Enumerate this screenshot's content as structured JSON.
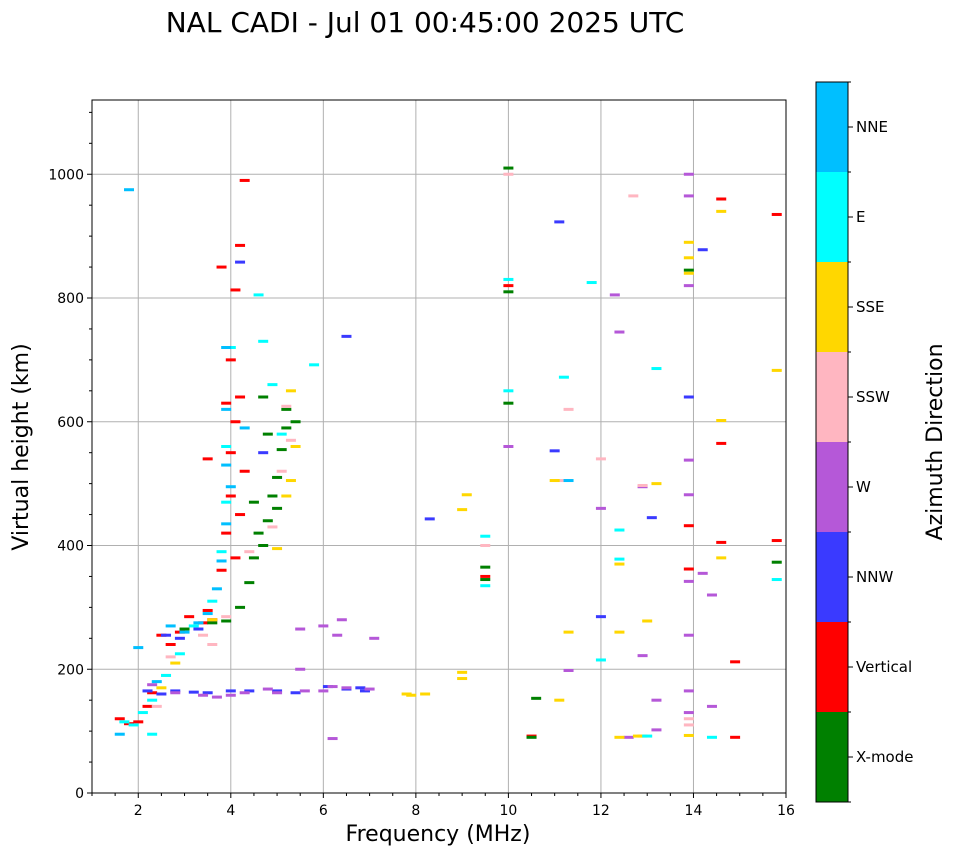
{
  "chart_data": {
    "type": "scatter",
    "title": "NAL CADI - Jul 01 00:45:00 2025 UTC",
    "xlabel": "Frequency (MHz)",
    "ylabel": "Virtual height (km)",
    "xlim": [
      1,
      16
    ],
    "ylim": [
      0,
      1120
    ],
    "xticks": [
      2,
      4,
      6,
      8,
      10,
      12,
      14,
      16
    ],
    "yticks": [
      0,
      200,
      400,
      600,
      800,
      1000
    ],
    "grid": true,
    "colorbar": {
      "title": "Azimuth Direction",
      "categories": [
        {
          "name": "X-mode",
          "color": "#008000"
        },
        {
          "name": "Vertical",
          "color": "#ff0000"
        },
        {
          "name": "NNW",
          "color": "#3a3aff"
        },
        {
          "name": "W",
          "color": "#b558d8"
        },
        {
          "name": "SSW",
          "color": "#ffb6c1"
        },
        {
          "name": "SSE",
          "color": "#ffd700"
        },
        {
          "name": "E",
          "color": "#00ffff"
        },
        {
          "name": "NNE",
          "color": "#00bfff"
        }
      ]
    },
    "series": [
      {
        "name": "Vertical",
        "points": [
          [
            1.6,
            120
          ],
          [
            1.8,
            112
          ],
          [
            2.0,
            115
          ],
          [
            2.2,
            140
          ],
          [
            2.3,
            162
          ],
          [
            2.5,
            255
          ],
          [
            2.7,
            240
          ],
          [
            2.9,
            260
          ],
          [
            3.1,
            285
          ],
          [
            3.4,
            275
          ],
          [
            3.5,
            295
          ],
          [
            3.6,
            280
          ],
          [
            3.8,
            360
          ],
          [
            3.9,
            420
          ],
          [
            4.0,
            480
          ],
          [
            4.0,
            550
          ],
          [
            3.9,
            630
          ],
          [
            4.0,
            700
          ],
          [
            4.1,
            813
          ],
          [
            4.2,
            885
          ],
          [
            4.3,
            990
          ],
          [
            3.8,
            850
          ],
          [
            4.2,
            640
          ],
          [
            4.1,
            600
          ],
          [
            3.5,
            540
          ],
          [
            4.3,
            520
          ],
          [
            4.2,
            450
          ],
          [
            4.1,
            380
          ],
          [
            10.0,
            820
          ],
          [
            9.5,
            350
          ],
          [
            13.9,
            432
          ],
          [
            13.9,
            362
          ],
          [
            14.6,
            960
          ],
          [
            14.6,
            565
          ],
          [
            14.6,
            405
          ],
          [
            14.9,
            212
          ],
          [
            14.9,
            90
          ],
          [
            15.8,
            935
          ],
          [
            15.8,
            408
          ],
          [
            10.5,
            92
          ]
        ]
      },
      {
        "name": "X-mode",
        "points": [
          [
            3.0,
            265
          ],
          [
            3.6,
            275
          ],
          [
            3.9,
            278
          ],
          [
            4.2,
            300
          ],
          [
            4.4,
            340
          ],
          [
            4.5,
            380
          ],
          [
            4.7,
            400
          ],
          [
            4.8,
            440
          ],
          [
            4.9,
            480
          ],
          [
            5.0,
            510
          ],
          [
            5.1,
            555
          ],
          [
            5.2,
            590
          ],
          [
            4.8,
            580
          ],
          [
            5.0,
            460
          ],
          [
            4.6,
            420
          ],
          [
            4.7,
            640
          ],
          [
            5.2,
            620
          ],
          [
            5.4,
            600
          ],
          [
            4.5,
            470
          ],
          [
            10.0,
            1010
          ],
          [
            10.0,
            810
          ],
          [
            10.0,
            630
          ],
          [
            9.5,
            345
          ],
          [
            9.5,
            365
          ],
          [
            10.6,
            153
          ],
          [
            10.5,
            90
          ],
          [
            13.9,
            845
          ],
          [
            15.8,
            373
          ]
        ]
      },
      {
        "name": "NNW",
        "points": [
          [
            2.2,
            165
          ],
          [
            2.5,
            160
          ],
          [
            2.8,
            165
          ],
          [
            3.2,
            163
          ],
          [
            3.5,
            162
          ],
          [
            4.0,
            165
          ],
          [
            4.4,
            165
          ],
          [
            5.0,
            165
          ],
          [
            5.4,
            162
          ],
          [
            6.1,
            172
          ],
          [
            6.5,
            168
          ],
          [
            6.8,
            170
          ],
          [
            6.9,
            165
          ],
          [
            2.6,
            255
          ],
          [
            2.9,
            250
          ],
          [
            3.3,
            265
          ],
          [
            4.2,
            858
          ],
          [
            4.7,
            550
          ],
          [
            6.5,
            738
          ],
          [
            8.3,
            443
          ],
          [
            11.0,
            553
          ],
          [
            11.1,
            923
          ],
          [
            12.0,
            285
          ],
          [
            13.1,
            445
          ],
          [
            13.9,
            640
          ],
          [
            14.2,
            878
          ]
        ]
      },
      {
        "name": "W",
        "points": [
          [
            2.3,
            175
          ],
          [
            2.8,
            162
          ],
          [
            3.4,
            158
          ],
          [
            3.7,
            155
          ],
          [
            4.0,
            158
          ],
          [
            4.3,
            162
          ],
          [
            4.8,
            168
          ],
          [
            5.0,
            162
          ],
          [
            5.6,
            165
          ],
          [
            6.0,
            165
          ],
          [
            6.2,
            172
          ],
          [
            6.5,
            170
          ],
          [
            7.0,
            168
          ],
          [
            5.5,
            265
          ],
          [
            6.0,
            270
          ],
          [
            6.3,
            255
          ],
          [
            6.4,
            280
          ],
          [
            7.1,
            250
          ],
          [
            5.5,
            200
          ],
          [
            6.2,
            88
          ],
          [
            10.0,
            560
          ],
          [
            12.0,
            460
          ],
          [
            12.3,
            805
          ],
          [
            12.4,
            745
          ],
          [
            12.9,
            495
          ],
          [
            12.9,
            222
          ],
          [
            13.2,
            150
          ],
          [
            13.2,
            102
          ],
          [
            13.9,
            1000
          ],
          [
            13.9,
            965
          ],
          [
            13.9,
            820
          ],
          [
            13.9,
            538
          ],
          [
            13.9,
            482
          ],
          [
            13.9,
            342
          ],
          [
            13.9,
            255
          ],
          [
            13.9,
            165
          ],
          [
            13.9,
            130
          ],
          [
            14.2,
            355
          ],
          [
            14.4,
            320
          ],
          [
            14.4,
            140
          ],
          [
            12.6,
            90
          ],
          [
            11.3,
            198
          ]
        ]
      },
      {
        "name": "SSW",
        "points": [
          [
            2.4,
            140
          ],
          [
            2.6,
            190
          ],
          [
            2.7,
            220
          ],
          [
            3.4,
            255
          ],
          [
            3.9,
            285
          ],
          [
            4.4,
            390
          ],
          [
            4.9,
            430
          ],
          [
            5.1,
            520
          ],
          [
            5.3,
            570
          ],
          [
            5.2,
            625
          ],
          [
            3.6,
            240
          ],
          [
            9.5,
            400
          ],
          [
            10.0,
            1000
          ],
          [
            11.3,
            620
          ],
          [
            11.1,
            505
          ],
          [
            12.0,
            540
          ],
          [
            12.7,
            965
          ],
          [
            12.9,
            497
          ],
          [
            13.9,
            110
          ],
          [
            13.9,
            120
          ]
        ]
      },
      {
        "name": "SSE",
        "points": [
          [
            2.5,
            170
          ],
          [
            2.8,
            210
          ],
          [
            3.6,
            280
          ],
          [
            5.0,
            395
          ],
          [
            5.2,
            480
          ],
          [
            5.3,
            505
          ],
          [
            5.4,
            560
          ],
          [
            5.3,
            650
          ],
          [
            8.2,
            160
          ],
          [
            7.9,
            158
          ],
          [
            9.0,
            458
          ],
          [
            9.0,
            195
          ],
          [
            9.0,
            185
          ],
          [
            9.1,
            482
          ],
          [
            11.0,
            505
          ],
          [
            11.1,
            150
          ],
          [
            11.3,
            260
          ],
          [
            12.4,
            90
          ],
          [
            12.4,
            260
          ],
          [
            12.4,
            370
          ],
          [
            12.9,
            92
          ],
          [
            13.0,
            278
          ],
          [
            13.2,
            500
          ],
          [
            13.9,
            890
          ],
          [
            13.9,
            865
          ],
          [
            13.9,
            840
          ],
          [
            13.9,
            93
          ],
          [
            14.6,
            940
          ],
          [
            14.6,
            602
          ],
          [
            14.6,
            380
          ],
          [
            15.8,
            683
          ],
          [
            7.8,
            160
          ],
          [
            12.8,
            92
          ]
        ]
      },
      {
        "name": "E",
        "points": [
          [
            1.7,
            115
          ],
          [
            1.9,
            110
          ],
          [
            2.1,
            130
          ],
          [
            2.3,
            150
          ],
          [
            2.6,
            190
          ],
          [
            2.9,
            225
          ],
          [
            3.2,
            270
          ],
          [
            3.6,
            310
          ],
          [
            3.8,
            390
          ],
          [
            3.9,
            470
          ],
          [
            3.9,
            560
          ],
          [
            4.0,
            720
          ],
          [
            4.7,
            730
          ],
          [
            4.6,
            805
          ],
          [
            4.9,
            660
          ],
          [
            5.1,
            580
          ],
          [
            2.3,
            95
          ],
          [
            5.8,
            692
          ],
          [
            9.5,
            415
          ],
          [
            9.5,
            335
          ],
          [
            10.0,
            830
          ],
          [
            10.0,
            650
          ],
          [
            11.2,
            672
          ],
          [
            11.8,
            825
          ],
          [
            12.0,
            215
          ],
          [
            12.4,
            378
          ],
          [
            12.4,
            425
          ],
          [
            13.2,
            686
          ],
          [
            13.0,
            92
          ],
          [
            14.4,
            90
          ],
          [
            15.8,
            345
          ]
        ]
      },
      {
        "name": "NNE",
        "points": [
          [
            1.6,
            95
          ],
          [
            1.8,
            975
          ],
          [
            2.0,
            235
          ],
          [
            2.4,
            180
          ],
          [
            2.7,
            270
          ],
          [
            3.0,
            260
          ],
          [
            3.3,
            275
          ],
          [
            3.5,
            290
          ],
          [
            3.7,
            330
          ],
          [
            3.8,
            375
          ],
          [
            3.9,
            435
          ],
          [
            4.0,
            495
          ],
          [
            3.9,
            530
          ],
          [
            3.9,
            620
          ],
          [
            3.9,
            720
          ],
          [
            4.3,
            590
          ],
          [
            11.3,
            505
          ]
        ]
      }
    ]
  }
}
